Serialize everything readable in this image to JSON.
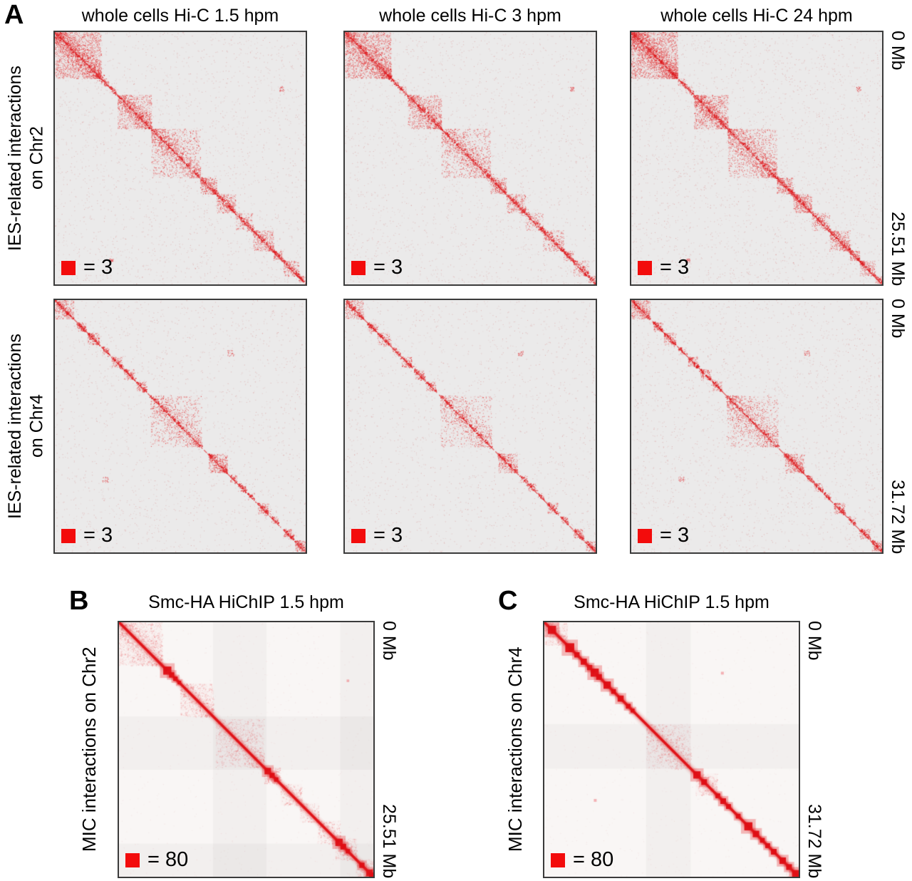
{
  "colors": {
    "accent_red": "#f30c0c",
    "map_bg_A": "#ebeaea",
    "map_bg_BC": "#f9f6f5",
    "map_border": "#3b3b3b",
    "point_red": "#e41a1c",
    "text": "#000000"
  },
  "panelA": {
    "label": "A",
    "column_titles": [
      "whole cells Hi-C 1.5 hpm",
      "whole cells Hi-C 3 hpm",
      "whole cells Hi-C 24 hpm"
    ],
    "rows": [
      {
        "left_label_line1": "IES-related interactions",
        "left_label_line2": "on Chr2",
        "axis_top_label": "0 Mb",
        "axis_bottom_label": "25.51 Mb",
        "legend_value": "= 3"
      },
      {
        "left_label_line1": "IES-related interactions",
        "left_label_line2": "on Chr4",
        "axis_top_label": "0 Mb",
        "axis_bottom_label": "31.72 Mb",
        "legend_value": "= 3"
      }
    ]
  },
  "panelB": {
    "label": "B",
    "title": "Smc-HA HiChIP 1.5 hpm",
    "left_label": "MIC interactions on Chr2",
    "axis_top_label": "0 Mb",
    "axis_bottom_label": "25.51 Mb",
    "legend_value": "= 80"
  },
  "panelC": {
    "label": "C",
    "title": "Smc-HA HiChIP 1.5 hpm",
    "left_label": "MIC interactions on Chr4",
    "axis_top_label": "0 Mb",
    "axis_bottom_label": "31.72 Mb",
    "legend_value": "= 80"
  },
  "chart_data": [
    {
      "type": "heatmap",
      "id": "A-Chr2-1.5hpm",
      "panel": "A",
      "title": "whole cells Hi-C 1.5 hpm",
      "chromosome": "Chr2",
      "extent_mb": 25.51,
      "legend_pixel_value": 3,
      "style": "sparse",
      "seed": 11,
      "density": 1,
      "noise": 2600,
      "blocks": [
        [
          0,
          0.185,
          0.8
        ],
        [
          0.185,
          0.215,
          0.55
        ],
        [
          0.215,
          0.245,
          0.55
        ],
        [
          0.25,
          0.385,
          0.65
        ],
        [
          0.385,
          0.58,
          0.4
        ],
        [
          0.58,
          0.645,
          0.85
        ],
        [
          0.645,
          0.72,
          0.75
        ],
        [
          0.72,
          0.79,
          0.45
        ],
        [
          0.79,
          0.872,
          0.6
        ],
        [
          0.872,
          0.91,
          0.85
        ],
        [
          0.91,
          0.972,
          0.6
        ],
        [
          0.972,
          1,
          0.9
        ]
      ],
      "off_dots": [
        [
          0.905,
          0.225,
          0.01
        ],
        [
          0.225,
          0.905,
          0.008
        ]
      ]
    },
    {
      "type": "heatmap",
      "id": "A-Chr2-3hpm",
      "panel": "A",
      "title": "whole cells Hi-C 3 hpm",
      "chromosome": "Chr2",
      "extent_mb": 25.51,
      "legend_pixel_value": 3,
      "style": "sparse",
      "seed": 22,
      "density": 0.9,
      "noise": 2400,
      "blocks": [
        [
          0,
          0.185,
          0.8
        ],
        [
          0.185,
          0.215,
          0.55
        ],
        [
          0.215,
          0.245,
          0.55
        ],
        [
          0.25,
          0.385,
          0.65
        ],
        [
          0.385,
          0.58,
          0.4
        ],
        [
          0.58,
          0.645,
          0.85
        ],
        [
          0.645,
          0.72,
          0.75
        ],
        [
          0.72,
          0.79,
          0.45
        ],
        [
          0.79,
          0.872,
          0.6
        ],
        [
          0.872,
          0.91,
          0.85
        ],
        [
          0.91,
          0.972,
          0.6
        ],
        [
          0.972,
          1,
          0.9
        ]
      ],
      "off_dots": [
        [
          0.905,
          0.225,
          0.008
        ]
      ]
    },
    {
      "type": "heatmap",
      "id": "A-Chr2-24hpm",
      "panel": "A",
      "title": "whole cells Hi-C 24 hpm",
      "chromosome": "Chr2",
      "extent_mb": 25.51,
      "legend_pixel_value": 3,
      "style": "sparse",
      "seed": 33,
      "density": 1.15,
      "noise": 3000,
      "blocks": [
        [
          0,
          0.185,
          0.8
        ],
        [
          0.185,
          0.215,
          0.55
        ],
        [
          0.215,
          0.245,
          0.55
        ],
        [
          0.25,
          0.385,
          0.65
        ],
        [
          0.385,
          0.58,
          0.4
        ],
        [
          0.58,
          0.645,
          0.85
        ],
        [
          0.645,
          0.72,
          0.75
        ],
        [
          0.72,
          0.79,
          0.45
        ],
        [
          0.79,
          0.872,
          0.6
        ],
        [
          0.872,
          0.91,
          0.85
        ],
        [
          0.91,
          0.972,
          0.6
        ],
        [
          0.972,
          1,
          0.9
        ]
      ],
      "off_dots": [
        [
          0.905,
          0.225,
          0.01
        ],
        [
          0.225,
          0.905,
          0.008
        ]
      ]
    },
    {
      "type": "heatmap",
      "id": "A-Chr4-1.5hpm",
      "panel": "A",
      "title": "whole cells Hi-C 1.5 hpm",
      "chromosome": "Chr4",
      "extent_mb": 31.72,
      "legend_pixel_value": 3,
      "style": "sparse",
      "seed": 44,
      "density": 1,
      "noise": 2300,
      "blocks": [
        [
          0,
          0.075,
          0.7
        ],
        [
          0.088,
          0.125,
          0.95
        ],
        [
          0.13,
          0.178,
          0.75
        ],
        [
          0.188,
          0.218,
          0.6
        ],
        [
          0.225,
          0.268,
          0.7
        ],
        [
          0.275,
          0.318,
          0.7
        ],
        [
          0.325,
          0.362,
          0.8
        ],
        [
          0.38,
          0.585,
          0.28
        ],
        [
          0.612,
          0.688,
          0.8
        ],
        [
          0.698,
          0.726,
          0.6
        ],
        [
          0.73,
          0.762,
          0.6
        ],
        [
          0.768,
          0.795,
          0.6
        ],
        [
          0.808,
          0.852,
          0.7
        ],
        [
          0.862,
          0.892,
          0.6
        ],
        [
          0.912,
          0.952,
          0.8
        ],
        [
          0.958,
          1,
          0.85
        ]
      ],
      "off_dots": [
        [
          0.7,
          0.21,
          0.012
        ],
        [
          0.2,
          0.71,
          0.012
        ]
      ]
    },
    {
      "type": "heatmap",
      "id": "A-Chr4-3hpm",
      "panel": "A",
      "title": "whole cells Hi-C 3 hpm",
      "chromosome": "Chr4",
      "extent_mb": 31.72,
      "legend_pixel_value": 3,
      "style": "sparse",
      "seed": 55,
      "density": 0.85,
      "noise": 2100,
      "blocks": [
        [
          0,
          0.075,
          0.7
        ],
        [
          0.088,
          0.125,
          0.95
        ],
        [
          0.13,
          0.178,
          0.75
        ],
        [
          0.188,
          0.218,
          0.6
        ],
        [
          0.225,
          0.268,
          0.7
        ],
        [
          0.275,
          0.318,
          0.7
        ],
        [
          0.325,
          0.362,
          0.8
        ],
        [
          0.38,
          0.585,
          0.28
        ],
        [
          0.612,
          0.688,
          0.8
        ],
        [
          0.698,
          0.726,
          0.6
        ],
        [
          0.73,
          0.762,
          0.6
        ],
        [
          0.768,
          0.795,
          0.6
        ],
        [
          0.808,
          0.852,
          0.7
        ],
        [
          0.862,
          0.892,
          0.6
        ],
        [
          0.912,
          0.952,
          0.8
        ],
        [
          0.958,
          1,
          0.85
        ]
      ],
      "off_dots": [
        [
          0.7,
          0.21,
          0.01
        ]
      ]
    },
    {
      "type": "heatmap",
      "id": "A-Chr4-24hpm",
      "panel": "A",
      "title": "whole cells Hi-C 24 hpm",
      "chromosome": "Chr4",
      "extent_mb": 31.72,
      "legend_pixel_value": 3,
      "style": "sparse",
      "seed": 66,
      "density": 1.1,
      "noise": 2700,
      "blocks": [
        [
          0,
          0.075,
          0.7
        ],
        [
          0.088,
          0.125,
          0.95
        ],
        [
          0.13,
          0.178,
          0.75
        ],
        [
          0.188,
          0.218,
          0.6
        ],
        [
          0.225,
          0.268,
          0.7
        ],
        [
          0.275,
          0.318,
          0.7
        ],
        [
          0.325,
          0.362,
          0.8
        ],
        [
          0.38,
          0.585,
          0.28
        ],
        [
          0.612,
          0.688,
          0.8
        ],
        [
          0.698,
          0.726,
          0.6
        ],
        [
          0.73,
          0.762,
          0.6
        ],
        [
          0.768,
          0.795,
          0.6
        ],
        [
          0.808,
          0.852,
          0.7
        ],
        [
          0.862,
          0.892,
          0.6
        ],
        [
          0.912,
          0.952,
          0.8
        ],
        [
          0.958,
          1,
          0.85
        ]
      ],
      "off_dots": [
        [
          0.7,
          0.21,
          0.012
        ],
        [
          0.2,
          0.71,
          0.012
        ]
      ]
    },
    {
      "type": "heatmap",
      "id": "B-Chr2-HiChIP-1.5hpm",
      "panel": "B",
      "title": "Smc-HA HiChIP 1.5 hpm",
      "chromosome": "Chr2",
      "extent_mb": 25.51,
      "legend_pixel_value": 80,
      "style": "hichip",
      "seed": 77,
      "noise": 700,
      "blocks": [
        [
          0,
          0.17,
          0.55
        ],
        [
          0.24,
          0.37,
          0.5
        ],
        [
          0.38,
          0.57,
          0.33
        ],
        [
          0.57,
          0.635,
          0.55
        ],
        [
          0.635,
          0.72,
          0.45
        ],
        [
          0.71,
          0.785,
          0.4
        ],
        [
          0.78,
          0.87,
          0.42
        ],
        [
          0.85,
          0.935,
          0.55
        ],
        [
          0.93,
          1,
          0.55
        ]
      ],
      "beads": [
        [
          0.19,
          0.02
        ],
        [
          0.207,
          0.013
        ],
        [
          0.222,
          0.011
        ],
        [
          0.237,
          0.009
        ],
        [
          0.585,
          0.016
        ],
        [
          0.602,
          0.013
        ],
        [
          0.618,
          0.011
        ],
        [
          0.865,
          0.018
        ],
        [
          0.882,
          0.014
        ],
        [
          0.9,
          0.011
        ],
        [
          0.955,
          0.013
        ],
        [
          0.985,
          0.016
        ],
        [
          0.999,
          0.02
        ]
      ],
      "off_dots": [
        [
          0.9,
          0.23,
          0.01
        ]
      ],
      "shade_rects": [
        [
          0.37,
          0,
          0.21,
          1
        ],
        [
          0,
          0.37,
          1,
          0.21
        ],
        [
          0.87,
          0,
          0.13,
          1
        ],
        [
          0,
          0.87,
          1,
          0.13
        ]
      ]
    },
    {
      "type": "heatmap",
      "id": "C-Chr4-HiChIP-1.5hpm",
      "panel": "C",
      "title": "Smc-HA HiChIP 1.5 hpm",
      "chromosome": "Chr4",
      "extent_mb": 31.72,
      "legend_pixel_value": 80,
      "style": "hichip",
      "seed": 88,
      "noise": 700,
      "blocks": [
        [
          0,
          0.09,
          0.55
        ],
        [
          0.4,
          0.575,
          0.3
        ],
        [
          0.595,
          0.68,
          0.55
        ],
        [
          0.95,
          1,
          0.5
        ]
      ],
      "beads": [
        [
          0.03,
          0.02
        ],
        [
          0.1,
          0.022
        ],
        [
          0.128,
          0.013
        ],
        [
          0.155,
          0.015
        ],
        [
          0.178,
          0.013
        ],
        [
          0.198,
          0.02
        ],
        [
          0.215,
          0.014
        ],
        [
          0.247,
          0.018
        ],
        [
          0.272,
          0.012
        ],
        [
          0.3,
          0.015
        ],
        [
          0.33,
          0.012
        ],
        [
          0.347,
          0.01
        ],
        [
          0.6,
          0.018
        ],
        [
          0.628,
          0.014
        ],
        [
          0.682,
          0.012
        ],
        [
          0.703,
          0.014
        ],
        [
          0.724,
          0.012
        ],
        [
          0.762,
          0.012
        ],
        [
          0.802,
          0.02
        ],
        [
          0.832,
          0.016
        ],
        [
          0.857,
          0.012
        ],
        [
          0.878,
          0.012
        ],
        [
          0.902,
          0.014
        ],
        [
          0.937,
          0.016
        ],
        [
          0.962,
          0.014
        ],
        [
          0.988,
          0.018
        ]
      ],
      "off_dots": [
        [
          0.7,
          0.2,
          0.011
        ],
        [
          0.2,
          0.7,
          0.011
        ]
      ],
      "shade_rects": [
        [
          0.4,
          0,
          0.175,
          1
        ],
        [
          0,
          0.4,
          1,
          0.175
        ]
      ]
    }
  ]
}
